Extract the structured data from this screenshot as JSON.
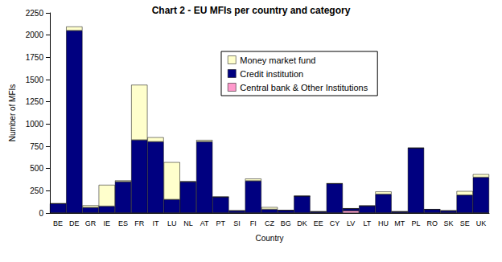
{
  "chart_data": {
    "type": "bar",
    "title": "Chart 2 - EU MFIs per country and category",
    "x_label": "Country",
    "y_label": "Number of MFIs",
    "categories": [
      "BE",
      "DE",
      "GR",
      "IE",
      "ES",
      "FR",
      "IT",
      "LU",
      "NL",
      "AT",
      "PT",
      "SI",
      "FI",
      "CZ",
      "BG",
      "DK",
      "EE",
      "CY",
      "LV",
      "LT",
      "HU",
      "MT",
      "PL",
      "RO",
      "SK",
      "SE",
      "UK"
    ],
    "series": [
      {
        "name": "Central bank & Other Institutions",
        "color": "#ff99cc",
        "values": [
          1,
          1,
          1,
          1,
          1,
          1,
          1,
          1,
          1,
          1,
          1,
          1,
          1,
          1,
          1,
          1,
          1,
          1,
          25,
          1,
          1,
          1,
          1,
          1,
          1,
          1,
          1
        ]
      },
      {
        "name": "Credit institution",
        "color": "#000080",
        "values": [
          105,
          2050,
          60,
          75,
          350,
          820,
          800,
          150,
          350,
          800,
          180,
          25,
          360,
          40,
          30,
          190,
          15,
          330,
          25,
          80,
          210,
          15,
          730,
          40,
          25,
          200,
          400
        ]
      },
      {
        "name": "Money market fund",
        "color": "#ffffcc",
        "values": [
          0,
          45,
          25,
          240,
          15,
          620,
          50,
          420,
          5,
          20,
          0,
          0,
          25,
          25,
          0,
          0,
          0,
          0,
          0,
          0,
          30,
          0,
          0,
          0,
          0,
          45,
          35
        ]
      }
    ],
    "stacked": true,
    "ylim": [
      0,
      2250
    ],
    "yticks": [
      0,
      250,
      500,
      750,
      1000,
      1250,
      1500,
      1750,
      2000,
      2250
    ],
    "grid": false,
    "legend": "top"
  }
}
